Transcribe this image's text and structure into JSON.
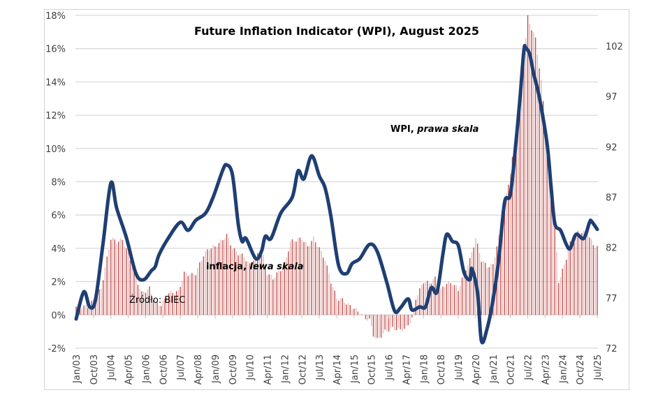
{
  "chart_data": {
    "type": "bar+line",
    "title": "Future Inflation Indicator (WPI), August 2025",
    "left_axis": {
      "ticks": [
        "-2%",
        "0%",
        "2%",
        "4%",
        "6%",
        "8%",
        "10%",
        "12%",
        "14%",
        "16%",
        "18%"
      ],
      "range": [
        -2,
        18
      ],
      "unit": "%"
    },
    "right_axis": {
      "ticks": [
        "72",
        "77",
        "82",
        "87",
        "92",
        "97",
        "102"
      ],
      "range": [
        72,
        105.1
      ]
    },
    "x_ticks": [
      "Jan/03",
      "Oct/03",
      "Jul/04",
      "Apr/05",
      "Jan/06",
      "Oct/06",
      "Jul/07",
      "Apr/08",
      "Jan/09",
      "Oct/09",
      "Jul/10",
      "Apr/11",
      "Jan/12",
      "Oct/12",
      "Jul/13",
      "Apr/14",
      "Jan/15",
      "Oct/15",
      "Jul/16",
      "Apr/17",
      "Jan/18",
      "Oct/18",
      "Jul/19",
      "Apr/20",
      "Jan/21",
      "Oct/21",
      "Jul/22",
      "Apr/23",
      "Jan/24",
      "Oct/24",
      "Jul/25"
    ],
    "x_start": "Jan/03",
    "x_months": 270,
    "grid": true,
    "annotations": {
      "wpi_label": "WPI, ",
      "wpi_label_italic": "prawa skala",
      "infl_label": "inflacja, ",
      "infl_label_italic": "lewa skala",
      "source": "Źródło: BIEC"
    },
    "series": [
      {
        "name": "inflacja",
        "axis": "left",
        "kind": "bar",
        "color_dark": "#c0504d",
        "color_light": "#e6b8b7",
        "points_month_value": [
          [
            0,
            0.5
          ],
          [
            6,
            0.5
          ],
          [
            10,
            1.0
          ],
          [
            13,
            1.6
          ],
          [
            16,
            3.4
          ],
          [
            18,
            4.6
          ],
          [
            21,
            4.4
          ],
          [
            24,
            4.5
          ],
          [
            27,
            3.7
          ],
          [
            31,
            2.2
          ],
          [
            34,
            1.3
          ],
          [
            38,
            1.6
          ],
          [
            41,
            0.7
          ],
          [
            44,
            0.6
          ],
          [
            48,
            1.3
          ],
          [
            53,
            1.4
          ],
          [
            56,
            2.5
          ],
          [
            60,
            2.4
          ],
          [
            62,
            2.5
          ],
          [
            66,
            3.6
          ],
          [
            69,
            4.0
          ],
          [
            72,
            4.1
          ],
          [
            75,
            4.4
          ],
          [
            78,
            4.8
          ],
          [
            81,
            4.0
          ],
          [
            84,
            3.7
          ],
          [
            87,
            3.5
          ],
          [
            90,
            3.0
          ],
          [
            93,
            3.5
          ],
          [
            96,
            4.0
          ],
          [
            99,
            2.5
          ],
          [
            102,
            2.2
          ],
          [
            105,
            2.6
          ],
          [
            108,
            3.0
          ],
          [
            111,
            4.4
          ],
          [
            114,
            4.5
          ],
          [
            117,
            4.6
          ],
          [
            120,
            4.1
          ],
          [
            123,
            4.6
          ],
          [
            126,
            4.0
          ],
          [
            129,
            3.3
          ],
          [
            132,
            2.0
          ],
          [
            135,
            1.0
          ],
          [
            138,
            0.9
          ],
          [
            141,
            0.6
          ],
          [
            144,
            0.4
          ],
          [
            147,
            0.1
          ],
          [
            150,
            -0.2
          ],
          [
            152,
            -0.3
          ],
          [
            154,
            -1.2
          ],
          [
            156,
            -1.5
          ],
          [
            160,
            -1.0
          ],
          [
            164,
            -0.8
          ],
          [
            168,
            -0.9
          ],
          [
            171,
            -0.8
          ],
          [
            174,
            -0.2
          ],
          [
            176,
            1.0
          ],
          [
            180,
            2.0
          ],
          [
            183,
            1.9
          ],
          [
            186,
            2.2
          ],
          [
            189,
            1.5
          ],
          [
            192,
            1.9
          ],
          [
            195,
            1.9
          ],
          [
            198,
            1.5
          ],
          [
            201,
            2.5
          ],
          [
            204,
            3.3
          ],
          [
            207,
            4.6
          ],
          [
            210,
            3.3
          ],
          [
            213,
            2.9
          ],
          [
            216,
            3.0
          ],
          [
            219,
            4.7
          ],
          [
            222,
            6.5
          ],
          [
            225,
            8.6
          ],
          [
            228,
            11.0
          ],
          [
            231,
            14.0
          ],
          [
            234,
            17.9
          ],
          [
            236,
            17.2
          ],
          [
            238,
            16.6
          ],
          [
            241,
            14.0
          ],
          [
            244,
            10.5
          ],
          [
            247,
            6.6
          ],
          [
            249,
            3.7
          ],
          [
            250,
            2.0
          ],
          [
            253,
            3.0
          ],
          [
            256,
            4.3
          ],
          [
            259,
            4.9
          ],
          [
            262,
            5.0
          ],
          [
            265,
            4.9
          ],
          [
            268,
            4.2
          ],
          [
            270,
            4.1
          ]
        ]
      },
      {
        "name": "WPI",
        "axis": "right",
        "kind": "line",
        "color": "#1f3f73",
        "points_month_value": [
          [
            0,
            74.9
          ],
          [
            4,
            77.6
          ],
          [
            7,
            76.1
          ],
          [
            10,
            76.8
          ],
          [
            14,
            82.5
          ],
          [
            18,
            88.4
          ],
          [
            21,
            85.9
          ],
          [
            26,
            83.0
          ],
          [
            31,
            79.4
          ],
          [
            35,
            78.8
          ],
          [
            39,
            79.7
          ],
          [
            41,
            80.1
          ],
          [
            43,
            81.3
          ],
          [
            48,
            83.0
          ],
          [
            54,
            84.5
          ],
          [
            58,
            83.7
          ],
          [
            62,
            84.7
          ],
          [
            67,
            85.4
          ],
          [
            71,
            87.0
          ],
          [
            76,
            89.7
          ],
          [
            78,
            90.2
          ],
          [
            81,
            89.2
          ],
          [
            84,
            84.3
          ],
          [
            86,
            82.6
          ],
          [
            88,
            82.9
          ],
          [
            93,
            80.9
          ],
          [
            96,
            81.6
          ],
          [
            98,
            83.1
          ],
          [
            101,
            82.9
          ],
          [
            106,
            85.4
          ],
          [
            112,
            87.0
          ],
          [
            115,
            89.6
          ],
          [
            118,
            88.8
          ],
          [
            122,
            91.1
          ],
          [
            126,
            89.1
          ],
          [
            129,
            87.9
          ],
          [
            132,
            85.1
          ],
          [
            136,
            80.2
          ],
          [
            140,
            79.4
          ],
          [
            143,
            80.4
          ],
          [
            147,
            80.9
          ],
          [
            152,
            82.3
          ],
          [
            156,
            81.6
          ],
          [
            161,
            78.5
          ],
          [
            165,
            75.7
          ],
          [
            168,
            76.0
          ],
          [
            172,
            76.9
          ],
          [
            174,
            75.8
          ],
          [
            178,
            76.1
          ],
          [
            181,
            76.1
          ],
          [
            184,
            78.0
          ],
          [
            187,
            77.6
          ],
          [
            190,
            81.3
          ],
          [
            192,
            83.3
          ],
          [
            195,
            82.6
          ],
          [
            198,
            82.2
          ],
          [
            201,
            79.5
          ],
          [
            204,
            78.8
          ],
          [
            205,
            79.9
          ],
          [
            208,
            77.5
          ],
          [
            210,
            72.7
          ],
          [
            213,
            74.0
          ],
          [
            216,
            76.8
          ],
          [
            219,
            80.9
          ],
          [
            222,
            86.5
          ],
          [
            225,
            87.3
          ],
          [
            228,
            92.7
          ],
          [
            230,
            96.9
          ],
          [
            232,
            101.6
          ],
          [
            233,
            101.8
          ],
          [
            235,
            101.2
          ],
          [
            237,
            99.3
          ],
          [
            240,
            96.9
          ],
          [
            244,
            92.3
          ],
          [
            246,
            88.2
          ],
          [
            248,
            84.4
          ],
          [
            251,
            83.7
          ],
          [
            254,
            82.3
          ],
          [
            256,
            81.9
          ],
          [
            259,
            83.3
          ],
          [
            263,
            82.9
          ],
          [
            266,
            84.5
          ],
          [
            267,
            84.6
          ],
          [
            270,
            83.8
          ]
        ]
      }
    ]
  }
}
